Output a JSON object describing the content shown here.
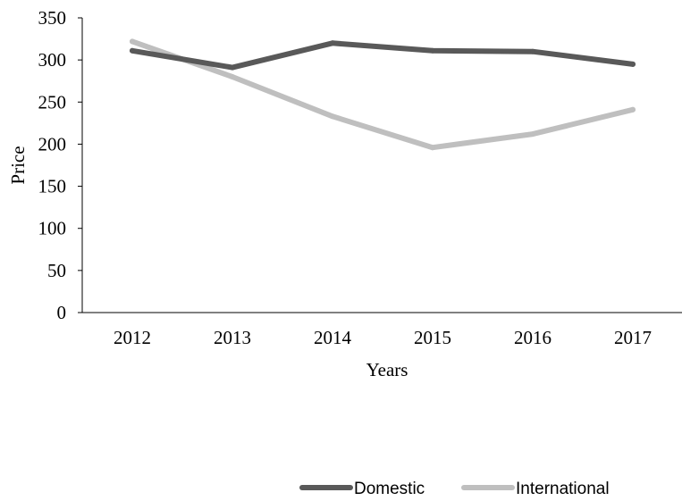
{
  "chart_data": {
    "type": "line",
    "title": "",
    "xlabel": "Years",
    "ylabel": "Price",
    "categories": [
      "2012",
      "2013",
      "2014",
      "2015",
      "2016",
      "2017"
    ],
    "ylim": [
      0,
      350
    ],
    "yticks": [
      0,
      50,
      100,
      150,
      200,
      250,
      300,
      350
    ],
    "grid": false,
    "legend_position": "bottom-right",
    "series": [
      {
        "name": "Domestic",
        "color": "#595959",
        "values": [
          311,
          291,
          320,
          311,
          310,
          295
        ]
      },
      {
        "name": "International",
        "color": "#bfbfbf",
        "values": [
          322,
          280,
          233,
          196,
          212,
          241
        ]
      }
    ]
  }
}
